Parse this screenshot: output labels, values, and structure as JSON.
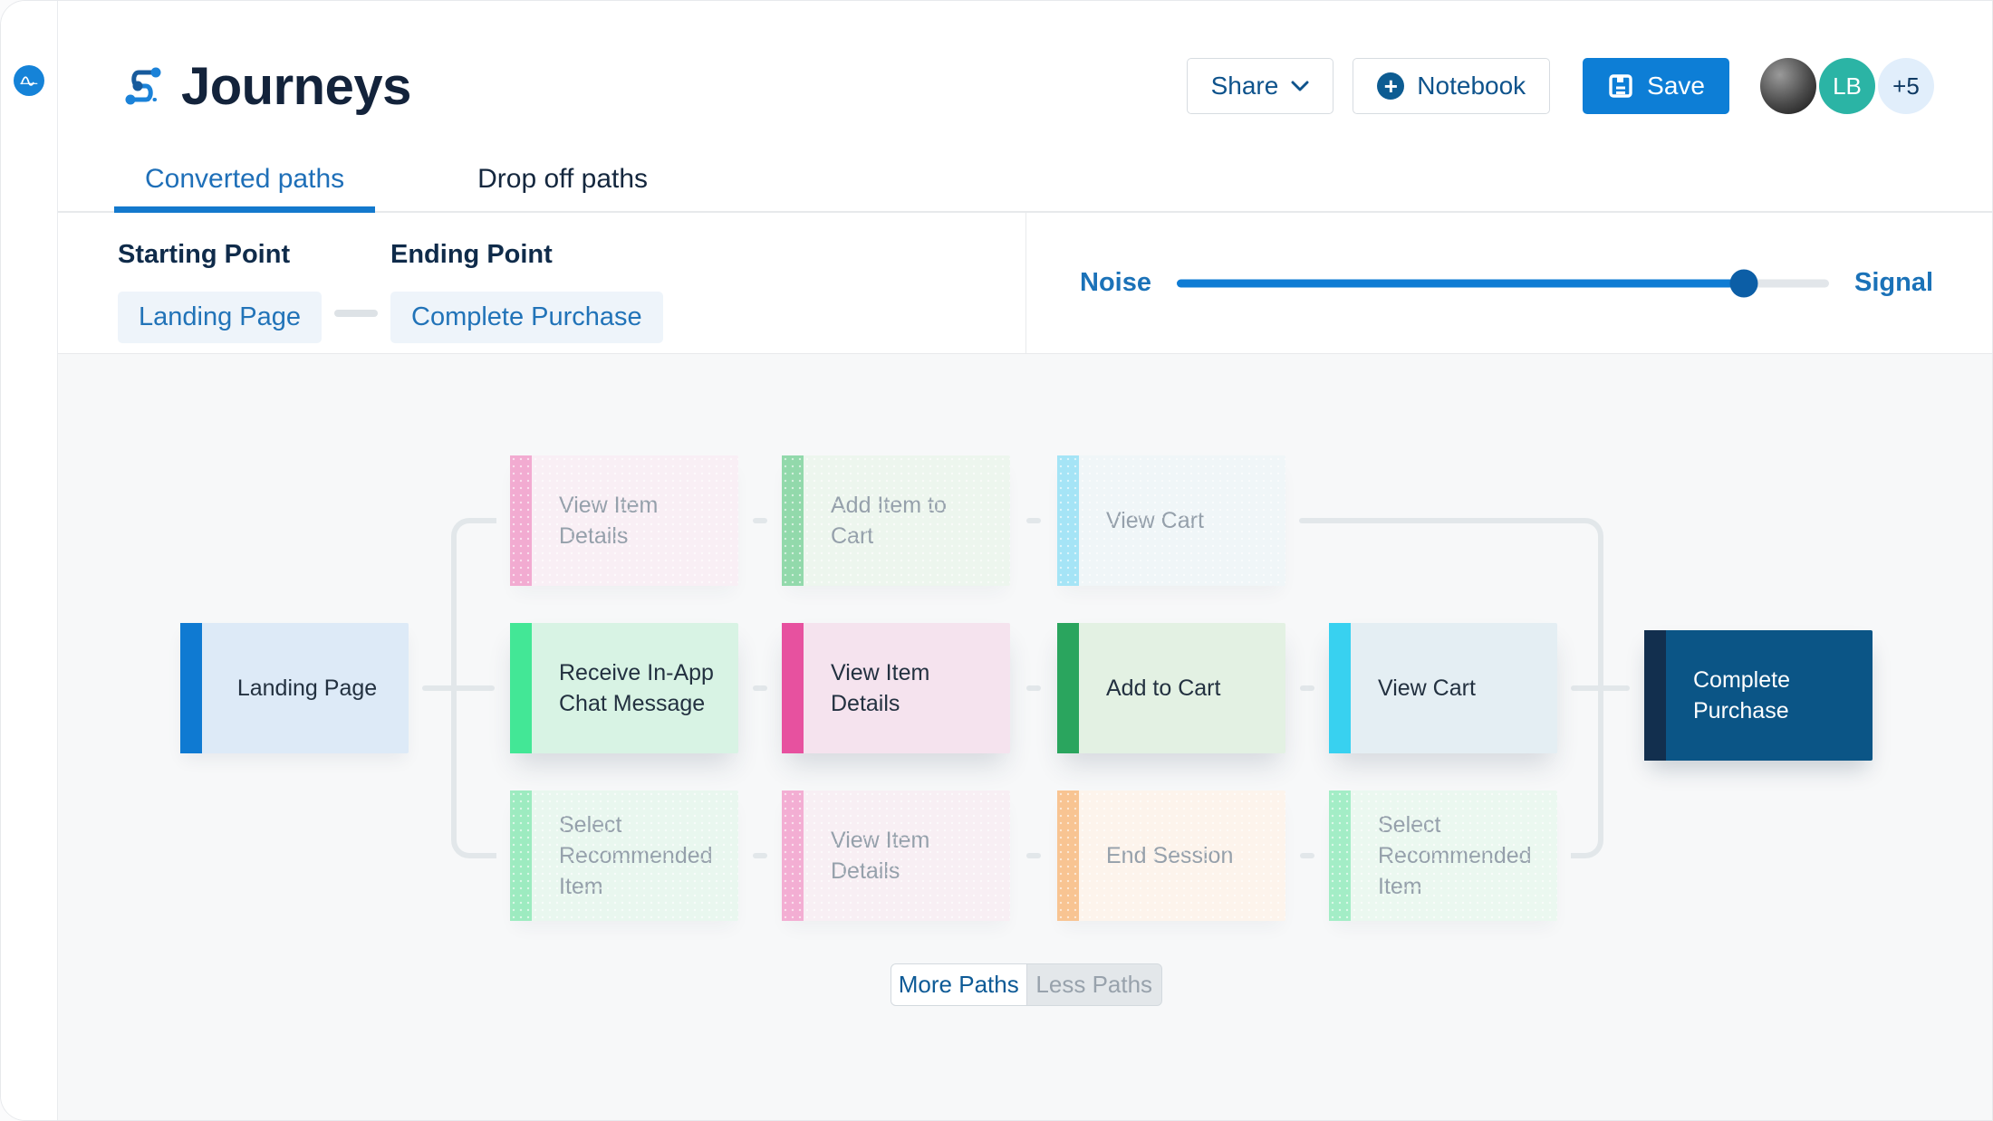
{
  "header": {
    "title": "Journeys",
    "logo_icon": "journeys-flow-icon",
    "actions": {
      "share_label": "Share",
      "notebook_label": "Notebook",
      "save_label": "Save"
    },
    "avatars": {
      "initials": "LB",
      "overflow_label": "+5"
    }
  },
  "sidebar": {
    "logo_icon": "amplitude-logo"
  },
  "tabs": [
    {
      "label": "Converted paths",
      "active": true
    },
    {
      "label": "Drop off paths",
      "active": false
    }
  ],
  "filters": {
    "starting_point": {
      "label": "Starting Point",
      "value": "Landing Page"
    },
    "ending_point": {
      "label": "Ending Point",
      "value": "Complete Purchase"
    },
    "noise_signal": {
      "left_label": "Noise",
      "right_label": "Signal",
      "value_percent": 87
    }
  },
  "journey": {
    "connector_color": "#e2e7ea",
    "nodes": [
      {
        "id": "landing-page",
        "label": "Landing Page",
        "row": "start",
        "col": 0,
        "bar": "#0f7ad2",
        "bg": "#ddeaf7",
        "state": "start"
      },
      {
        "id": "view-item-details-top",
        "label": "View Item Details",
        "row": "top",
        "col": 1,
        "bar": "#f2abd1",
        "bg": "#f9eff5",
        "state": "faded"
      },
      {
        "id": "add-item-to-cart-top",
        "label": "Add Item to Cart",
        "row": "top",
        "col": 2,
        "bar": "#92d9ab",
        "bg": "#edf6ee",
        "state": "faded"
      },
      {
        "id": "view-cart-top",
        "label": "View Cart",
        "row": "top",
        "col": 3,
        "bar": "#a5e4f6",
        "bg": "#f0f6f8",
        "state": "faded"
      },
      {
        "id": "receive-in-app-chat-message",
        "label": "Receive In-App Chat Message",
        "row": "middle",
        "col": 1,
        "bar": "#43e796",
        "bg": "#d8f3e4",
        "state": "active"
      },
      {
        "id": "view-item-details-middle",
        "label": "View Item Details",
        "row": "middle",
        "col": 2,
        "bar": "#e7519f",
        "bg": "#f5e3ee",
        "state": "active"
      },
      {
        "id": "add-to-cart",
        "label": "Add to Cart",
        "row": "middle",
        "col": 3,
        "bar": "#2aa55e",
        "bg": "#e3f1e3",
        "state": "active"
      },
      {
        "id": "view-cart-middle",
        "label": "View Cart",
        "row": "middle",
        "col": 4,
        "bar": "#38d1f0",
        "bg": "#e4eef3",
        "state": "active"
      },
      {
        "id": "select-recommended-item-1",
        "label": "Select Recommended Item",
        "row": "bottom",
        "col": 1,
        "bar": "#9debc0",
        "bg": "#e9f7ef",
        "state": "faded"
      },
      {
        "id": "view-item-details-bottom",
        "label": "View Item Details",
        "row": "bottom",
        "col": 2,
        "bar": "#f3aed3",
        "bg": "#f8eff4",
        "state": "faded"
      },
      {
        "id": "end-session",
        "label": "End Session",
        "row": "bottom",
        "col": 3,
        "bar": "#f8c492",
        "bg": "#fdf4ec",
        "state": "faded"
      },
      {
        "id": "select-recommended-item-2",
        "label": "Select Recommended Item",
        "row": "bottom",
        "col": 4,
        "bar": "#a3edc6",
        "bg": "#ebf8f0",
        "state": "faded"
      },
      {
        "id": "complete-purchase",
        "label": "Complete Purchase",
        "row": "end",
        "col": 5,
        "bar": "#122f4e",
        "bg": "#0b5586",
        "state": "end"
      }
    ]
  },
  "footer_controls": {
    "more_paths_label": "More Paths",
    "less_paths_label": "Less Paths"
  }
}
